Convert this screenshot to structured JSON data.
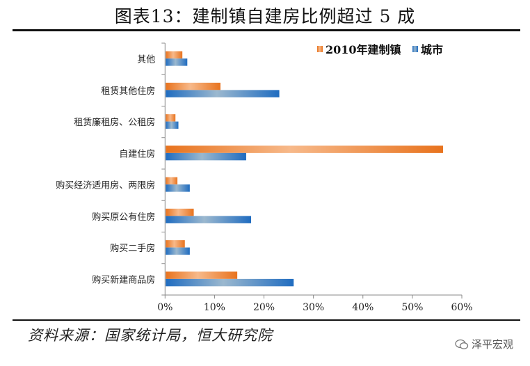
{
  "title": "图表13：建制镇自建房比例超过 5 成",
  "source": "资料来源：国家统计局，恒大研究院",
  "watermark": "泽平宏观",
  "chart_data": {
    "type": "bar",
    "orientation": "horizontal",
    "categories": [
      "其他",
      "租赁其他住房",
      "租赁廉租房、公租房",
      "自建住房",
      "购买经济适用房、两限房",
      "购买原公有住房",
      "购买二手房",
      "购买新建商品房"
    ],
    "series": [
      {
        "name": "2010年建制镇",
        "color": "#e8731e",
        "values": [
          3.5,
          11.2,
          2.1,
          56.2,
          2.5,
          5.8,
          4.0,
          14.6
        ]
      },
      {
        "name": "城市",
        "color": "#1f6cc0",
        "values": [
          4.5,
          23.1,
          2.7,
          16.4,
          5.0,
          17.4,
          5.0,
          26.0
        ]
      }
    ],
    "xlim": [
      0,
      60
    ],
    "xticks": [
      "0%",
      "10%",
      "20%",
      "30%",
      "40%",
      "50%",
      "60%"
    ],
    "grid": false,
    "legend": "top-right"
  }
}
